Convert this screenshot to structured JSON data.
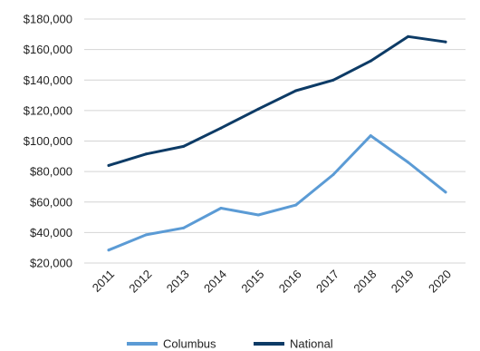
{
  "chart_data": {
    "type": "line",
    "title": "",
    "xlabel": "",
    "ylabel": "",
    "categories": [
      "2011",
      "2012",
      "2013",
      "2014",
      "2015",
      "2016",
      "2017",
      "2018",
      "2019",
      "2020"
    ],
    "series": [
      {
        "name": "Columbus",
        "color": "#5b9bd5",
        "values": [
          28500,
          38500,
          43000,
          56000,
          51500,
          58000,
          78000,
          103500,
          86000,
          66500
        ]
      },
      {
        "name": "National",
        "color": "#0d3b66",
        "values": [
          84000,
          91500,
          96500,
          108500,
          121000,
          133000,
          140000,
          152500,
          168500,
          165000
        ]
      }
    ],
    "ylim": [
      20000,
      180000
    ],
    "yticks": [
      20000,
      40000,
      60000,
      80000,
      100000,
      120000,
      140000,
      160000,
      180000
    ],
    "ytick_labels": [
      "$20,000",
      "$40,000",
      "$60,000",
      "$80,000",
      "$100,000",
      "$120,000",
      "$140,000",
      "$160,000",
      "$180,000"
    ],
    "grid": true,
    "legend_position": "bottom"
  }
}
